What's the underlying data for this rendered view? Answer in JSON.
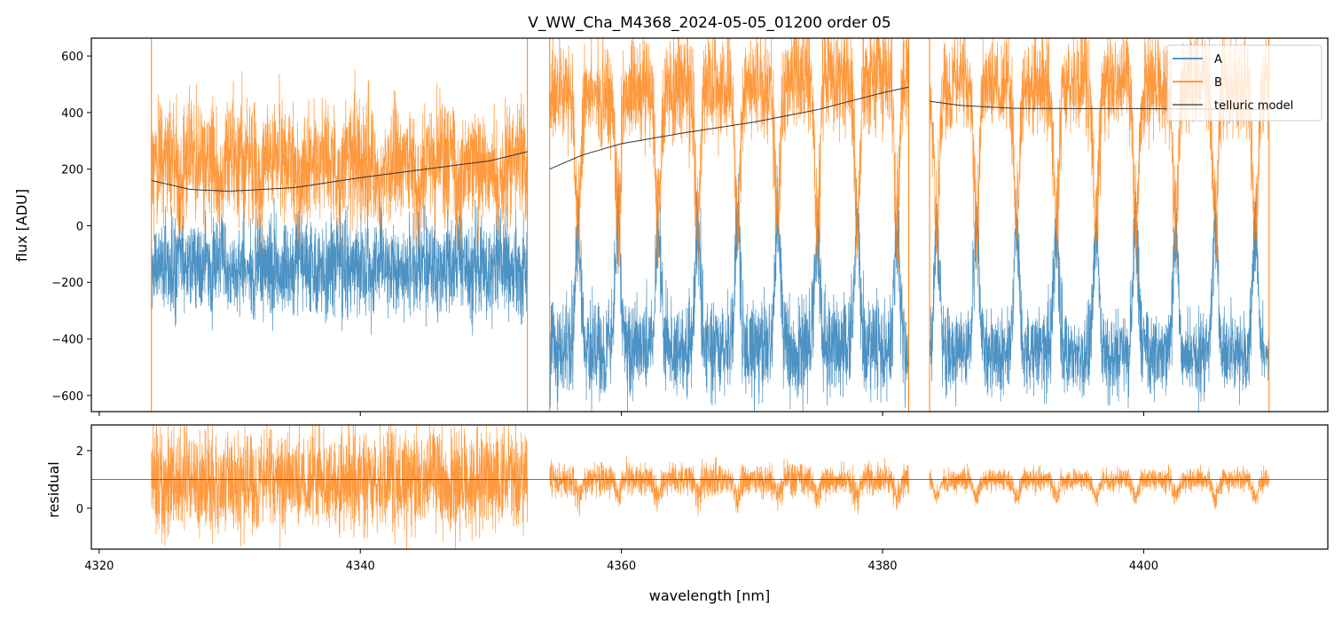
{
  "chart_data": [
    {
      "type": "line",
      "title": "V_WW_Cha_M4368_2024-05-05_01200  order 05",
      "xlabel": "",
      "ylabel": "flux [ADU]",
      "xlim": [
        4319.4,
        4414.1
      ],
      "ylim": [
        -657,
        663
      ],
      "xticks": [
        4320,
        4340,
        4360,
        4380,
        4400
      ],
      "yticks": [
        -600,
        -400,
        -200,
        0,
        200,
        400,
        600
      ],
      "ytick_labels": [
        "−600",
        "−400",
        "−200",
        "0",
        "200",
        "400",
        "600"
      ],
      "legend": {
        "placement": "top-right",
        "entries": [
          "A",
          "B",
          "telluric model"
        ]
      },
      "colors": {
        "A": "#1f77b4",
        "B": "#ff7f0e",
        "telluric model": "#555555"
      },
      "segments": [
        [
          4324.0,
          4352.8
        ],
        [
          4354.5,
          4382.0
        ],
        [
          4383.6,
          4409.6
        ]
      ],
      "absorption_line_spacing_nm": 3.05,
      "absorption_line_first_nm": 4326.2,
      "series": [
        {
          "name": "A",
          "baseline_by_segment": [
            -150,
            -430,
            -450
          ],
          "noise": [
            90,
            90,
            80
          ],
          "line_peak": -20
        },
        {
          "name": "B",
          "baseline_by_segment": [
            230,
            470,
            500
          ],
          "noise": [
            110,
            100,
            90
          ],
          "line_min": 20
        },
        {
          "name": "telluric model",
          "segments": [
            {
              "x": [
                4324,
                4327,
                4330,
                4335,
                4340,
                4345,
                4350,
                4352.8
              ],
              "y": [
                160,
                128,
                122,
                135,
                170,
                200,
                230,
                262
              ]
            },
            {
              "x": [
                4354.5,
                4357,
                4360,
                4365,
                4370,
                4375,
                4380,
                4382
              ],
              "y": [
                200,
                250,
                290,
                330,
                365,
                410,
                470,
                490
              ]
            },
            {
              "x": [
                4383.6,
                4386,
                4390,
                4395,
                4400,
                4405,
                4409.6
              ],
              "y": [
                440,
                425,
                415,
                414,
                414,
                412,
                410
              ]
            }
          ]
        }
      ]
    },
    {
      "type": "line",
      "xlabel": "wavelength [nm]",
      "ylabel": "residual",
      "xlim": [
        4319.4,
        4414.1
      ],
      "ylim": [
        -1.42,
        2.89
      ],
      "xticks": [
        4320,
        4340,
        4360,
        4380,
        4400
      ],
      "yticks": [
        0,
        2
      ],
      "reference_line": 1,
      "series": [
        {
          "name": "B residual",
          "baseline": 1,
          "noise_by_segment": [
            0.9,
            0.3,
            0.2
          ]
        }
      ]
    }
  ]
}
